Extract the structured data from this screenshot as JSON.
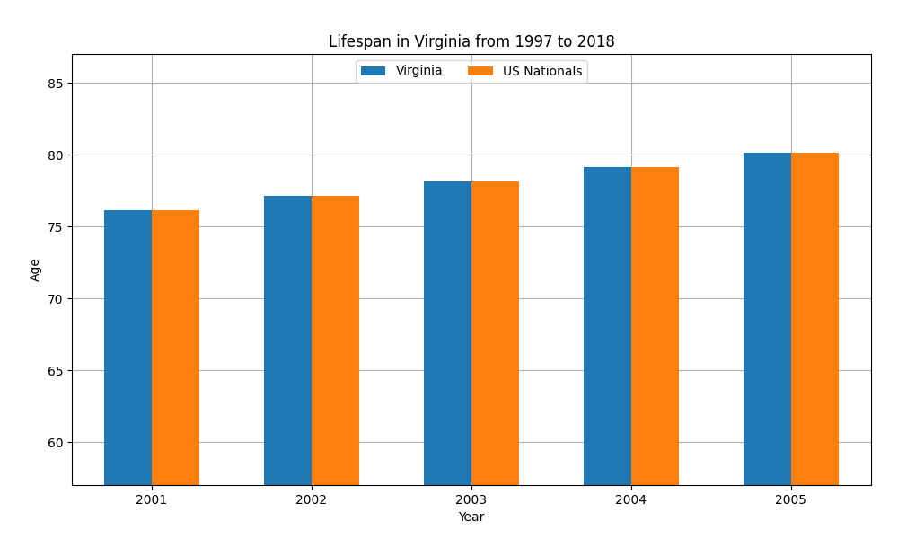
{
  "chart_data": {
    "type": "bar",
    "title": "Lifespan in Virginia from 1997 to 2018",
    "x_label": "Year",
    "y_label": "Age",
    "categories": [
      "2001",
      "2002",
      "2003",
      "2004",
      "2005"
    ],
    "series": [
      {
        "name": "Virginia",
        "values": [
          76.1,
          77.1,
          78.1,
          79.1,
          80.1
        ]
      },
      {
        "name": "US Nationals",
        "values": [
          76.1,
          77.1,
          78.1,
          79.1,
          80.1
        ]
      }
    ],
    "ylim": [
      57,
      87
    ],
    "yticks": [
      60,
      65,
      70,
      75,
      80,
      85
    ],
    "grid": true,
    "legend": "upper center"
  }
}
